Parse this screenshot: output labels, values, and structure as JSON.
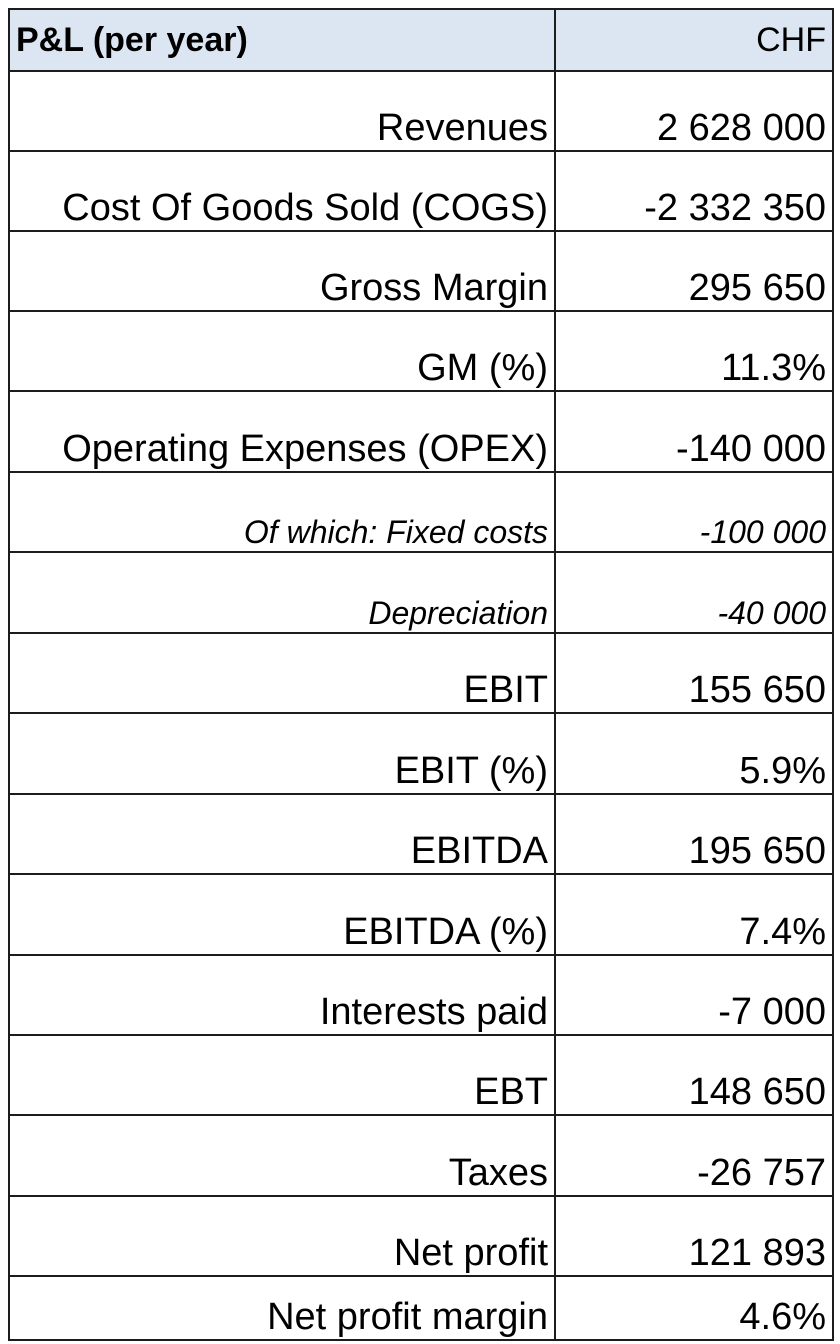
{
  "table": {
    "header": {
      "label": "P&L (per year)",
      "currency": "CHF"
    },
    "rows": [
      {
        "label": "Revenues",
        "value": "2 628 000"
      },
      {
        "label": "Cost Of Goods Sold (COGS)",
        "value": "-2 332 350"
      },
      {
        "label": "Gross Margin",
        "value": "295 650"
      },
      {
        "label": "GM (%)",
        "value": "11.3%"
      },
      {
        "label": "Operating Expenses (OPEX)",
        "value": "-140 000"
      },
      {
        "label": "Of which: Fixed costs",
        "value": "-100 000"
      },
      {
        "label": "Depreciation",
        "value": "-40 000"
      },
      {
        "label": "EBIT",
        "value": "155 650"
      },
      {
        "label": "EBIT (%)",
        "value": "5.9%"
      },
      {
        "label": "EBITDA",
        "value": "195 650"
      },
      {
        "label": "EBITDA (%)",
        "value": "7.4%"
      },
      {
        "label": "Interests paid",
        "value": "-7 000"
      },
      {
        "label": "EBT",
        "value": "148 650"
      },
      {
        "label": "Taxes",
        "value": "-26 757"
      },
      {
        "label": "Net profit",
        "value": "121 893"
      },
      {
        "label": "Net profit margin",
        "value": "4.6%"
      }
    ]
  },
  "colors": {
    "header_background": "#dce6f2",
    "grid_line": "#1c1c1c",
    "text": "#000000"
  }
}
